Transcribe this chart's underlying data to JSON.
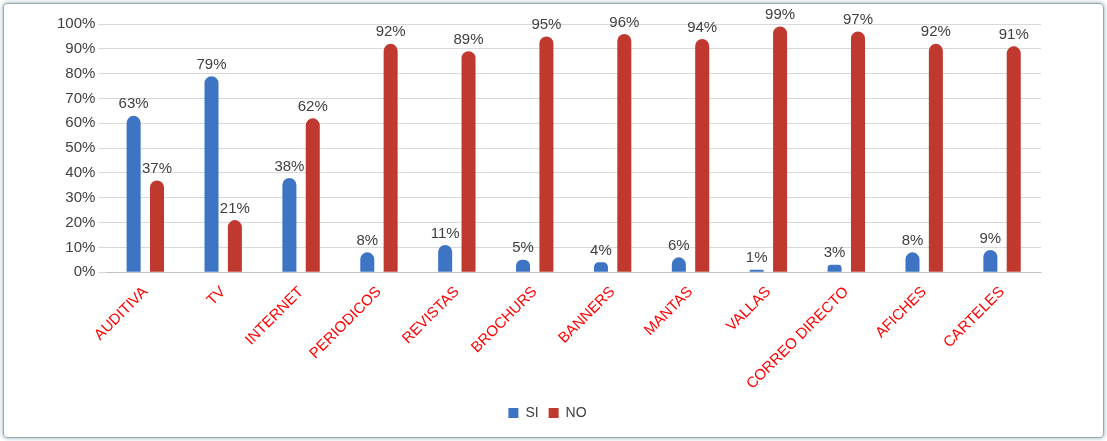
{
  "chart_data": {
    "type": "bar",
    "categories": [
      "AUDITIVA",
      "TV",
      "INTERNET",
      "PERIODICOS",
      "REVISTAS",
      "BROCHURS",
      "BANNERS",
      "MANTAS",
      "VALLAS",
      "CORREO DIRECTO",
      "AFICHES",
      "CARTELES"
    ],
    "series": [
      {
        "name": "SI",
        "color": "#3d74c4",
        "values": [
          63,
          79,
          38,
          8,
          11,
          5,
          4,
          6,
          1,
          3,
          8,
          9
        ],
        "value_labels": [
          "63%",
          "79%",
          "38%",
          "8%",
          "11%",
          "5%",
          "4%",
          "6%",
          "1%",
          "3%",
          "8%",
          "9%"
        ]
      },
      {
        "name": "NO",
        "color": "#c0392f",
        "values": [
          37,
          21,
          62,
          92,
          89,
          95,
          96,
          94,
          99,
          97,
          92,
          91
        ],
        "value_labels": [
          "37%",
          "21%",
          "62%",
          "92%",
          "89%",
          "95%",
          "96%",
          "94%",
          "99%",
          "97%",
          "92%",
          "91%"
        ]
      }
    ],
    "ylim": [
      0,
      100
    ],
    "yticks": [
      {
        "value": 0,
        "label": "0%"
      },
      {
        "value": 10,
        "label": "10%"
      },
      {
        "value": 20,
        "label": "20%"
      },
      {
        "value": 30,
        "label": "30%"
      },
      {
        "value": 40,
        "label": "40%"
      },
      {
        "value": 50,
        "label": "50%"
      },
      {
        "value": 60,
        "label": "60%"
      },
      {
        "value": 70,
        "label": "70%"
      },
      {
        "value": 80,
        "label": "80%"
      },
      {
        "value": 90,
        "label": "90%"
      },
      {
        "value": 100,
        "label": "100%"
      }
    ],
    "grid": "y",
    "legend": "bottom"
  }
}
